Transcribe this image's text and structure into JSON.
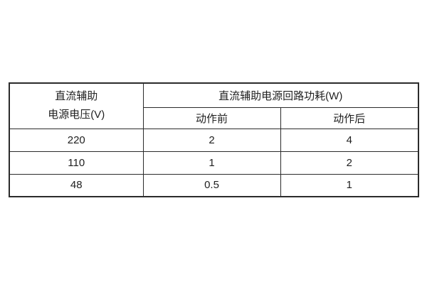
{
  "table": {
    "voltage_header": {
      "line1": "直流辅助",
      "line2": "电源电压(V)"
    },
    "group_header": "直流辅助电源回路功耗(W)",
    "sub_headers": {
      "before": "动作前",
      "after": "动作后"
    },
    "rows": [
      {
        "voltage": "220",
        "before": "2",
        "after": "4"
      },
      {
        "voltage": "110",
        "before": "1",
        "after": "2"
      },
      {
        "voltage": "48",
        "before": "0.5",
        "after": "1"
      }
    ]
  },
  "colors": {
    "border": "#2b2b2b",
    "text": "#1f1f1f",
    "background": "#ffffff"
  }
}
